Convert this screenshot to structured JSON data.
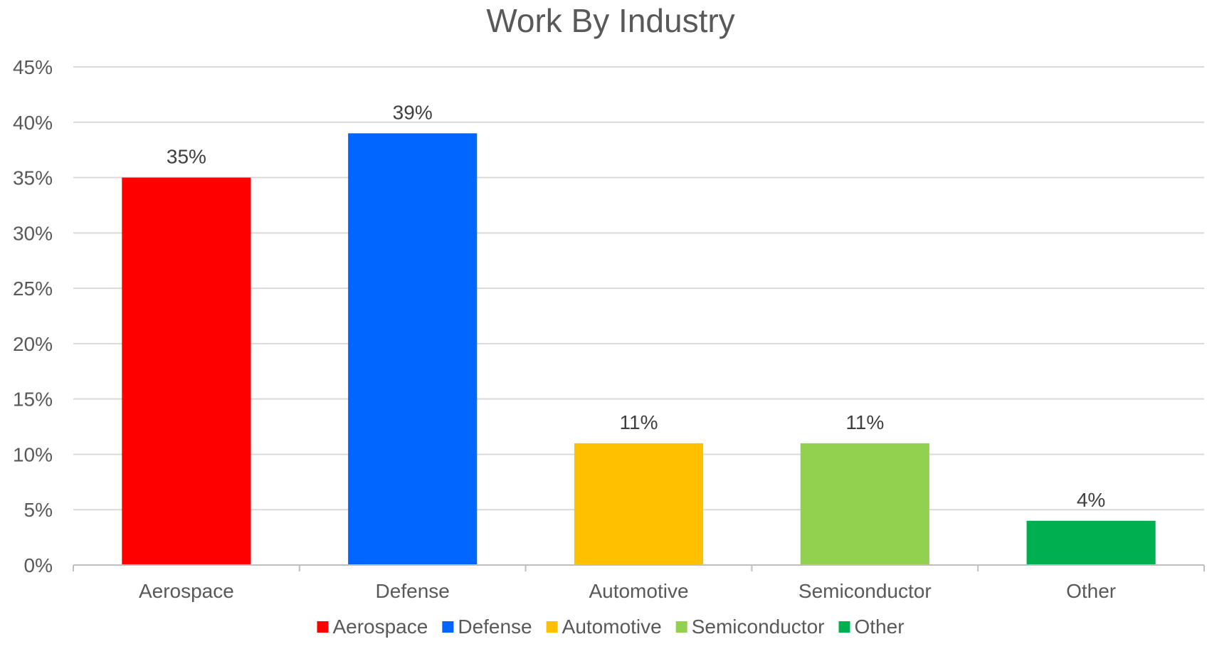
{
  "chart_data": {
    "type": "bar",
    "title": "Work By Industry",
    "xlabel": "",
    "ylabel": "",
    "categories": [
      "Aerospace",
      "Defense",
      "Automotive",
      "Semiconductor",
      "Other"
    ],
    "values": [
      35,
      39,
      11,
      11,
      4
    ],
    "data_labels": [
      "35%",
      "39%",
      "11%",
      "11%",
      "4%"
    ],
    "colors": [
      "#ff0000",
      "#0066ff",
      "#ffc000",
      "#92d050",
      "#00b050"
    ],
    "ylim": [
      0,
      45
    ],
    "y_ticks": [
      0,
      5,
      10,
      15,
      20,
      25,
      30,
      35,
      40,
      45
    ],
    "y_tick_labels": [
      "0%",
      "5%",
      "10%",
      "15%",
      "20%",
      "25%",
      "30%",
      "35%",
      "40%",
      "45%"
    ],
    "grid": true,
    "legend": {
      "placement": "bottom",
      "entries": [
        "Aerospace",
        "Defense",
        "Automotive",
        "Semiconductor",
        "Other"
      ]
    }
  }
}
